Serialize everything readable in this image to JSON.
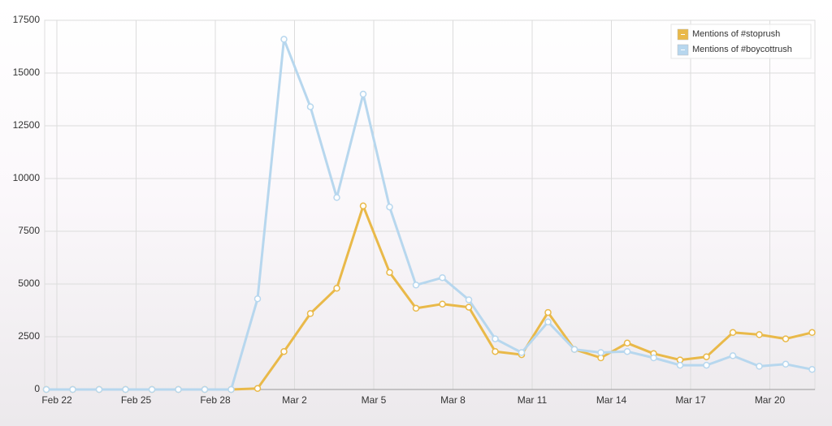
{
  "chart_data": {
    "type": "line",
    "categories": [
      null,
      "Feb 22",
      null,
      null,
      "Feb 25",
      null,
      null,
      "Feb 28",
      null,
      null,
      "Mar 2",
      null,
      null,
      "Mar 5",
      null,
      null,
      "Mar 8",
      null,
      null,
      "Mar 11",
      null,
      null,
      "Mar 14",
      null,
      null,
      "Mar 17",
      null,
      null,
      "Mar 20",
      null
    ],
    "series": [
      {
        "name": "Mentions of #stoprush",
        "color": "#e9b949",
        "values": [
          0,
          0,
          0,
          0,
          0,
          0,
          0,
          0,
          50,
          1800,
          3600,
          4800,
          8700,
          5550,
          3850,
          4050,
          3900,
          1800,
          1650,
          3650,
          1900,
          1500,
          2200,
          1700,
          1400,
          1550,
          2700,
          2600,
          2400,
          2700
        ]
      },
      {
        "name": "Mentions of #boycottrush",
        "color": "#b7d7ee",
        "values": [
          0,
          0,
          0,
          0,
          0,
          0,
          0,
          0,
          4300,
          16600,
          13400,
          9100,
          14000,
          8650,
          4950,
          5300,
          4250,
          2400,
          1750,
          3200,
          1900,
          1750,
          1800,
          1500,
          1150,
          1150,
          1600,
          1100,
          1200,
          950
        ]
      }
    ],
    "ylim": [
      0,
      17500
    ],
    "yticks": [
      0,
      2500,
      5000,
      7500,
      10000,
      12500,
      15000,
      17500
    ],
    "grid": true,
    "legend": "top-right"
  }
}
